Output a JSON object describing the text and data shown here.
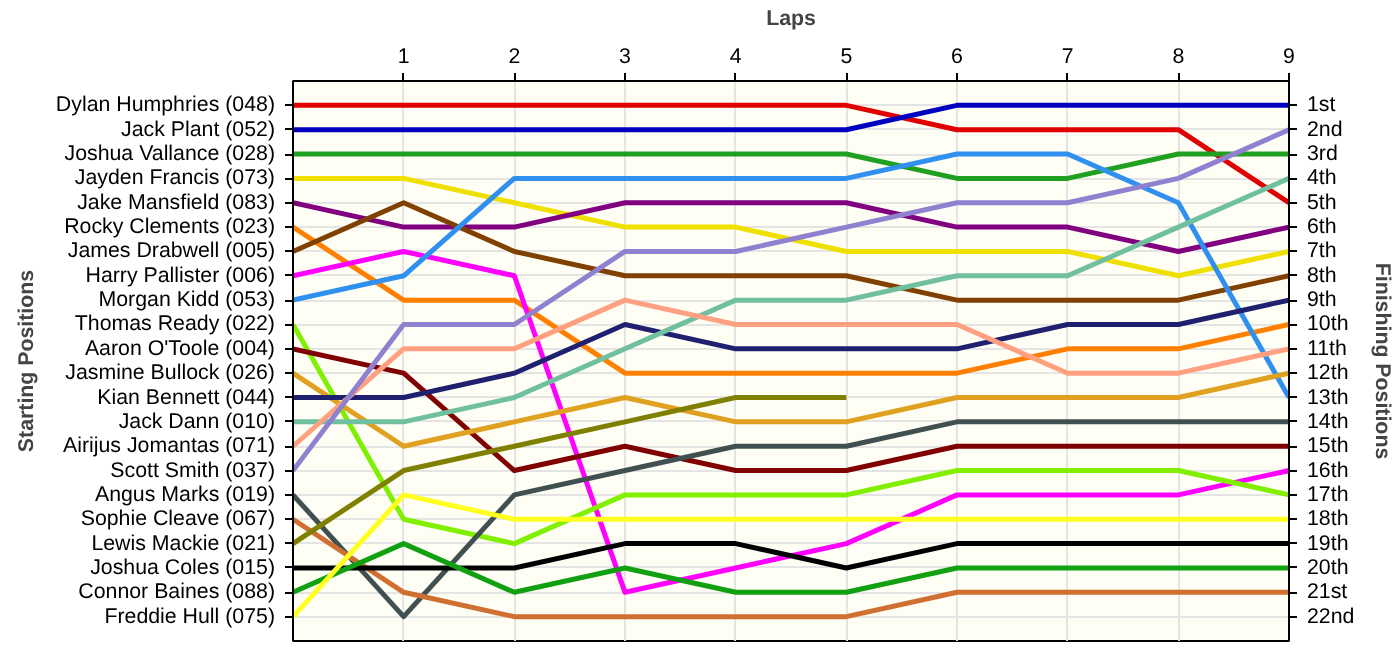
{
  "chart_data": {
    "type": "line",
    "xlabel": "Laps",
    "annotations": [
      "Starting Positions"
    ],
    "y2label": "Finishing Positions",
    "x": [
      0,
      1,
      2,
      3,
      4,
      5,
      6,
      7,
      8,
      9
    ],
    "xlim": [
      0,
      9
    ],
    "xticks": [
      1,
      2,
      3,
      4,
      5,
      6,
      7,
      8,
      9
    ],
    "y_categories": [
      "Dylan Humphries (048)",
      "Jack Plant (052)",
      "Joshua Vallance (028)",
      "Jayden Francis (073)",
      "Jake Mansfield (083)",
      "Rocky Clements (023)",
      "James Drabwell (005)",
      "Harry Pallister (006)",
      "Morgan Kidd (053)",
      "Thomas Ready (022)",
      "Aaron O'Toole (004)",
      "Jasmine Bullock (026)",
      "Kian Bennett (044)",
      "Jack Dann (010)",
      "Airijus Jomantas (071)",
      "Scott Smith (037)",
      "Angus Marks (019)",
      "Sophie Cleave (067)",
      "Lewis Mackie (021)",
      "Joshua Coles (015)",
      "Connor Baines (088)",
      "Freddie Hull (075)"
    ],
    "ylim": [
      23,
      0
    ],
    "yticks": [
      {
        "value": 1,
        "label": "1st"
      },
      {
        "value": 2,
        "label": "2nd"
      },
      {
        "value": 3,
        "label": "3rd"
      },
      {
        "value": 4,
        "label": "4th"
      },
      {
        "value": 5,
        "label": "5th"
      },
      {
        "value": 6,
        "label": "6th"
      },
      {
        "value": 7,
        "label": "7th"
      },
      {
        "value": 8,
        "label": "8th"
      },
      {
        "value": 9,
        "label": "9th"
      },
      {
        "value": 10,
        "label": "10th"
      },
      {
        "value": 11,
        "label": "11th"
      },
      {
        "value": 12,
        "label": "12th"
      },
      {
        "value": 13,
        "label": "13th"
      },
      {
        "value": 14,
        "label": "14th"
      },
      {
        "value": 15,
        "label": "15th"
      },
      {
        "value": 16,
        "label": "16th"
      },
      {
        "value": 17,
        "label": "17th"
      },
      {
        "value": 18,
        "label": "18th"
      },
      {
        "value": 19,
        "label": "19th"
      },
      {
        "value": 20,
        "label": "20th"
      },
      {
        "value": 21,
        "label": "21st"
      },
      {
        "value": 22,
        "label": "22nd"
      }
    ],
    "grid": true,
    "marker": "none",
    "line_style": "solid",
    "series": [
      {
        "color": "#e00000",
        "values": [
          1,
          1,
          1,
          1,
          1,
          1,
          2,
          2,
          2,
          5
        ]
      },
      {
        "color": "#0000c0",
        "values": [
          2,
          2,
          2,
          2,
          2,
          2,
          1,
          1,
          1,
          1
        ]
      },
      {
        "color": "#20a020",
        "values": [
          3,
          3,
          3,
          3,
          3,
          3,
          4,
          4,
          3,
          3
        ]
      },
      {
        "color": "#f0e000",
        "values": [
          4,
          4,
          5,
          6,
          6,
          7,
          7,
          7,
          8,
          7
        ]
      },
      {
        "color": "#800080",
        "values": [
          5,
          6,
          6,
          5,
          5,
          5,
          6,
          6,
          7,
          6
        ]
      },
      {
        "color": "#ff8000",
        "values": [
          6,
          9,
          9,
          12,
          12,
          12,
          12,
          11,
          11,
          10
        ]
      },
      {
        "color": "#804000",
        "values": [
          7,
          5,
          7,
          8,
          8,
          8,
          9,
          9,
          9,
          8
        ]
      },
      {
        "color": "#ff00ff",
        "values": [
          8,
          7,
          8,
          21,
          20,
          19,
          17,
          17,
          17,
          16
        ]
      },
      {
        "color": "#3090f0",
        "values": [
          9,
          8,
          4,
          4,
          4,
          4,
          3,
          3,
          5,
          13
        ]
      },
      {
        "color": "#80f000",
        "values": [
          10,
          18,
          19,
          17,
          17,
          17,
          16,
          16,
          16,
          17
        ]
      },
      {
        "color": "#800000",
        "values": [
          11,
          12,
          16,
          15,
          16,
          16,
          15,
          15,
          15,
          15
        ]
      },
      {
        "color": "#e0a020",
        "values": [
          12,
          15,
          14,
          13,
          14,
          14,
          13,
          13,
          13,
          12
        ]
      },
      {
        "color": "#202070",
        "values": [
          13,
          13,
          12,
          10,
          11,
          11,
          11,
          10,
          10,
          9
        ]
      },
      {
        "color": "#70c0a0",
        "values": [
          14,
          14,
          13,
          11,
          9,
          9,
          8,
          8,
          6,
          4
        ]
      },
      {
        "color": "#ffa080",
        "values": [
          15,
          11,
          11,
          9,
          10,
          10,
          10,
          12,
          12,
          11
        ]
      },
      {
        "color": "#9080d0",
        "values": [
          16,
          10,
          10,
          7,
          7,
          6,
          5,
          5,
          4,
          2
        ]
      },
      {
        "color": "#405050",
        "values": [
          17,
          22,
          17,
          16,
          15,
          15,
          14,
          14,
          14,
          14
        ]
      },
      {
        "color": "#d07030",
        "values": [
          18,
          21,
          22,
          22,
          22,
          22,
          21,
          21,
          21,
          21
        ]
      },
      {
        "color": "#808000",
        "values": [
          19,
          16,
          15,
          14,
          13,
          13,
          null,
          null,
          null,
          null
        ]
      },
      {
        "color": "#000000",
        "values": [
          20,
          20,
          20,
          19,
          19,
          20,
          19,
          19,
          19,
          19
        ]
      },
      {
        "color": "#10a010",
        "values": [
          21,
          19,
          21,
          20,
          21,
          21,
          20,
          20,
          20,
          20
        ]
      },
      {
        "color": "#ffff20",
        "values": [
          22,
          17,
          18,
          18,
          18,
          18,
          18,
          18,
          18,
          18
        ]
      }
    ]
  }
}
